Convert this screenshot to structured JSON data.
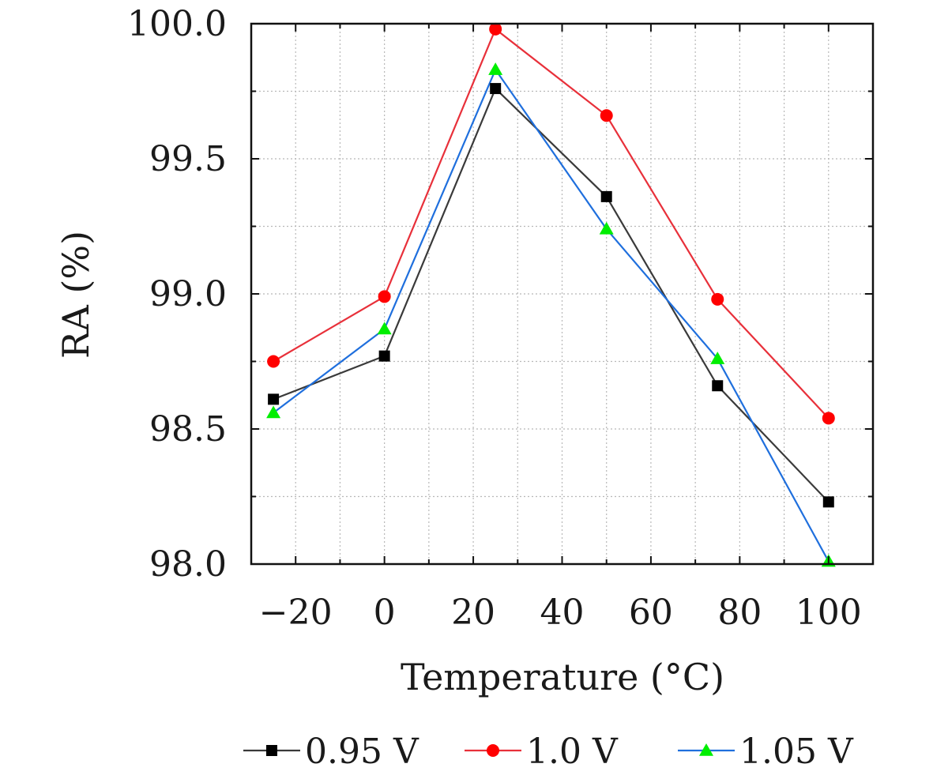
{
  "chart_data": {
    "type": "line",
    "title": "",
    "xlabel": "Temperature (°C)",
    "ylabel": "RA (%)",
    "xlim": [
      -30,
      110
    ],
    "ylim": [
      98.0,
      100.0
    ],
    "x_ticks": [
      -20,
      0,
      20,
      40,
      60,
      80,
      100
    ],
    "x_tick_labels": [
      "−20",
      "0",
      "20",
      "40",
      "60",
      "80",
      "100"
    ],
    "y_ticks": [
      98.0,
      98.5,
      99.0,
      99.5,
      100.0
    ],
    "y_tick_labels": [
      "98.0",
      "98.5",
      "99.0",
      "99.5",
      "100.0"
    ],
    "grid": true,
    "legend_position": "bottom",
    "x": [
      -25,
      0,
      25,
      50,
      75,
      100
    ],
    "series": [
      {
        "name": "0.95 V",
        "color": "#3a3a3a",
        "marker_color": "#000000",
        "marker": "square",
        "values": [
          98.61,
          98.77,
          99.76,
          99.36,
          98.66,
          98.23
        ]
      },
      {
        "name": "1.0 V",
        "color": "#e8303a",
        "marker_color": "#ff0000",
        "marker": "circle",
        "values": [
          98.75,
          98.99,
          99.98,
          99.66,
          98.98,
          98.54
        ]
      },
      {
        "name": "1.05 V",
        "color": "#1f6fdd",
        "marker_color": "#00ee00",
        "marker": "triangle",
        "values": [
          98.56,
          98.87,
          99.83,
          99.24,
          98.76,
          98.01
        ]
      }
    ]
  }
}
